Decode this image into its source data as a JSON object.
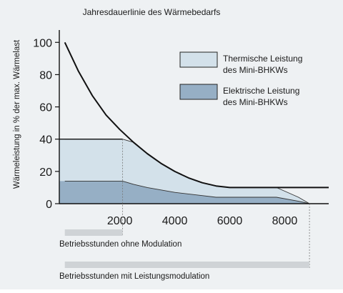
{
  "chart_data": {
    "type": "area",
    "title": "Jahresdauerlinie des Wärmebedarfs",
    "ylabel": "Wärmeleistung in % der max. Wärmelast",
    "xlabel": "",
    "xlim": [
      -200,
      9600
    ],
    "ylim": [
      0,
      105
    ],
    "x_ticks": [
      2000,
      4000,
      6000,
      8000
    ],
    "y_ticks": [
      0,
      20,
      40,
      60,
      80,
      100
    ],
    "grid": false,
    "legend_position": "top-right",
    "series": [
      {
        "name": "Jahresdauerlinie des Wärmebedarfs",
        "x": [
          0,
          500,
          1000,
          1500,
          2000,
          2500,
          3000,
          3500,
          4000,
          4500,
          5000,
          5500,
          6000,
          7000,
          8000,
          8760,
          9600
        ],
        "y": [
          100,
          82,
          67,
          55,
          46,
          38,
          31,
          25,
          20,
          16,
          13,
          11,
          10,
          10,
          10,
          10,
          10
        ]
      },
      {
        "name": "Thermische Leistung des Mini-BHKWs",
        "x": [
          0,
          2100,
          2100,
          2500,
          3000,
          3500,
          4000,
          4500,
          5000,
          5500,
          6000,
          7000,
          7700,
          8500,
          8900
        ],
        "y": [
          40,
          40,
          40,
          38,
          31,
          25,
          20,
          16,
          13,
          11,
          10,
          10,
          10,
          4,
          0
        ]
      },
      {
        "name": "Elektrische Leistung des Mini-BHKWs",
        "x": [
          0,
          2100,
          2500,
          3000,
          4000,
          5000,
          5500,
          6000,
          7000,
          7700,
          8500,
          8900
        ],
        "y": [
          14,
          14,
          12,
          10,
          7,
          5,
          4,
          4,
          4,
          4,
          1.5,
          0
        ]
      }
    ],
    "bars": [
      {
        "name": "Betriebsstunden ohne Modulation",
        "x_start": 0,
        "x_end": 2100
      },
      {
        "name": "Betriebsstunden mit Leistungsmodulation",
        "x_start": 0,
        "x_end": 8900
      }
    ]
  },
  "legend": [
    {
      "line1": "Thermische Leistung",
      "line2": "des Mini-BHKWs",
      "color": "#d3e1ea"
    },
    {
      "line1": "Elektrische Leistung",
      "line2": "des Mini-BHKWs",
      "color": "#96afc5"
    }
  ],
  "colors": {
    "background": "#eef1f3",
    "thermal": "#d3e1ea",
    "electric": "#96afc5",
    "line": "#111111",
    "bar": "#cfd3d6"
  }
}
